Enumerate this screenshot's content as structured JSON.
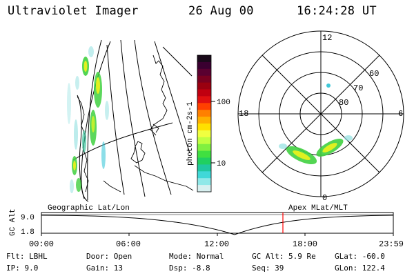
{
  "header": {
    "instrument": "Ultraviolet Imager",
    "date": "26 Aug 00",
    "time": "16:24:28 UT"
  },
  "colorbar": {
    "unit_label": "photon cm-2s-1",
    "ticks": [
      "100",
      "10"
    ],
    "colors": [
      "#1a0a1a",
      "#3a0030",
      "#5a0030",
      "#7a0020",
      "#9a0010",
      "#c00010",
      "#e01010",
      "#ff4000",
      "#ff8000",
      "#ffb000",
      "#ffe000",
      "#f0ff40",
      "#c0ff40",
      "#80f040",
      "#40e040",
      "#20d060",
      "#20c8a0",
      "#40d8d8",
      "#90e8e8",
      "#d8f0f0"
    ]
  },
  "polar_plot": {
    "mlt_labels": [
      "12",
      "18",
      "6",
      "0"
    ],
    "lat_labels": [
      "60",
      "70",
      "80"
    ]
  },
  "timeline": {
    "left_title": "Geographic Lat/Lon",
    "right_title": "Apex MLat/MLT",
    "y_axis_label": "GC Alt",
    "y_ticks": [
      "9.0",
      "1.8"
    ],
    "x_ticks": [
      "00:00",
      "06:00",
      "12:00",
      "18:00",
      "23:59"
    ],
    "marker_color": "#ff0000"
  },
  "info": {
    "filter": "Flt: LBHL",
    "ip": "IP: 9.0",
    "door": "Door: Open",
    "gain": "Gain: 13",
    "mode": "Mode: Normal",
    "dsp": "Dsp:   -8.8",
    "gc_alt": "GC Alt: 5.9 Re",
    "seq": "Seq: 39",
    "glat": "GLat: -60.0",
    "glon": "GLon: 122.4"
  }
}
